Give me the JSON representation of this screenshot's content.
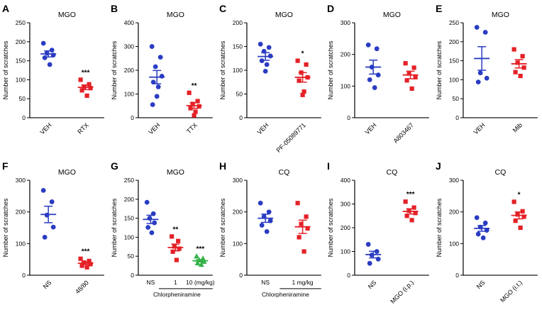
{
  "figure": {
    "background": "#ffffff",
    "colors": {
      "control_blue": "#2a3cc2",
      "treatment_red": "#e42127",
      "dose_green": "#36b24a",
      "axis_black": "#000000"
    }
  },
  "chart_data": [
    {
      "panel": "A",
      "type": "scatter",
      "title": "MGO",
      "ylabel": "Number of scratches",
      "ylim": [
        0,
        250
      ],
      "yticks": [
        0,
        50,
        100,
        150,
        200,
        250
      ],
      "x_rotation": 45,
      "groups": [
        {
          "label": "VEH",
          "marker": "circle",
          "color": "#2a3cc2",
          "values": [
            196,
            178,
            170,
            165,
            158,
            140
          ],
          "mean": 168,
          "sem": 8
        },
        {
          "label": "RTX",
          "marker": "square",
          "color": "#e42127",
          "values": [
            100,
            88,
            82,
            78,
            72,
            58
          ],
          "mean": 80,
          "sem": 6,
          "sig": "***"
        }
      ]
    },
    {
      "panel": "B",
      "type": "scatter",
      "title": "MGO",
      "ylabel": "Number of scratches",
      "ylim": [
        0,
        400
      ],
      "yticks": [
        0,
        100,
        200,
        300,
        400
      ],
      "x_rotation": 45,
      "groups": [
        {
          "label": "VEH",
          "marker": "circle",
          "color": "#2a3cc2",
          "values": [
            300,
            255,
            215,
            175,
            150,
            130,
            90,
            55
          ],
          "mean": 171,
          "sem": 28
        },
        {
          "label": "TTX",
          "marker": "square",
          "color": "#e42127",
          "values": [
            105,
            70,
            58,
            48,
            40,
            25,
            10
          ],
          "mean": 51,
          "sem": 12,
          "sig": "**"
        }
      ]
    },
    {
      "panel": "C",
      "type": "scatter",
      "title": "MGO",
      "ylabel": "Number of scratches",
      "ylim": [
        0,
        200
      ],
      "yticks": [
        0,
        50,
        100,
        150,
        200
      ],
      "x_rotation": 45,
      "groups": [
        {
          "label": "VEH",
          "marker": "circle",
          "color": "#2a3cc2",
          "values": [
            155,
            148,
            140,
            130,
            120,
            112,
            98
          ],
          "mean": 129,
          "sem": 8
        },
        {
          "label": "PF-05089771",
          "marker": "square",
          "color": "#e42127",
          "values": [
            120,
            112,
            95,
            85,
            78,
            55,
            48
          ],
          "mean": 85,
          "sem": 10,
          "sig": "*"
        }
      ]
    },
    {
      "panel": "D",
      "type": "scatter",
      "title": "MGO",
      "ylabel": "Number of scratches",
      "ylim": [
        0,
        300
      ],
      "yticks": [
        0,
        100,
        200,
        300
      ],
      "x_rotation": 45,
      "groups": [
        {
          "label": "VEH",
          "marker": "circle",
          "color": "#2a3cc2",
          "values": [
            230,
            218,
            160,
            135,
            120,
            95
          ],
          "mean": 160,
          "sem": 22
        },
        {
          "label": "A803467",
          "marker": "square",
          "color": "#e42127",
          "values": [
            172,
            158,
            140,
            128,
            118,
            92
          ],
          "mean": 135,
          "sem": 12
        }
      ]
    },
    {
      "panel": "E",
      "type": "scatter",
      "title": "MGO",
      "ylabel": "Number of scratches",
      "ylim": [
        0,
        250
      ],
      "yticks": [
        0,
        50,
        100,
        150,
        200,
        250
      ],
      "x_rotation": 45,
      "groups": [
        {
          "label": "VEH",
          "marker": "circle",
          "color": "#2a3cc2",
          "values": [
            238,
            225,
            118,
            104,
            94
          ],
          "mean": 156,
          "sem": 31
        },
        {
          "label": "Mib",
          "marker": "square",
          "color": "#e42127",
          "values": [
            180,
            162,
            145,
            132,
            120,
            110
          ],
          "mean": 142,
          "sem": 11
        }
      ]
    },
    {
      "panel": "F",
      "type": "scatter",
      "title": "MGO",
      "ylabel": "Number of scratches",
      "ylim": [
        0,
        300
      ],
      "yticks": [
        0,
        100,
        200,
        300
      ],
      "x_rotation": 45,
      "groups": [
        {
          "label": "NS",
          "marker": "circle",
          "color": "#2a3cc2",
          "values": [
            268,
            232,
            190,
            152,
            120
          ],
          "mean": 192,
          "sem": 26
        },
        {
          "label": "48/80",
          "marker": "square",
          "color": "#e42127",
          "values": [
            52,
            45,
            40,
            35,
            30,
            25
          ],
          "mean": 38,
          "sem": 4,
          "sig": "***"
        }
      ]
    },
    {
      "panel": "G",
      "type": "scatter",
      "title": "MGO",
      "ylabel": "Number of scratches",
      "ylim": [
        0,
        250
      ],
      "yticks": [
        0,
        50,
        100,
        150,
        200,
        250
      ],
      "x_rotation": 0,
      "xaxis_group_label": "Chlorpheniramine",
      "groups": [
        {
          "label": "NS",
          "marker": "circle",
          "color": "#2a3cc2",
          "values": [
            192,
            162,
            150,
            138,
            126,
            112
          ],
          "mean": 147,
          "sem": 11
        },
        {
          "label": "1",
          "marker": "square",
          "color": "#e42127",
          "values": [
            102,
            90,
            76,
            70,
            62,
            40
          ],
          "mean": 73,
          "sem": 9,
          "sig": "**"
        },
        {
          "label": "10 (mg/kg)",
          "marker": "triangle",
          "color": "#36b24a",
          "values": [
            50,
            44,
            40,
            36,
            32,
            28
          ],
          "mean": 38,
          "sem": 3,
          "sig": "***"
        }
      ]
    },
    {
      "panel": "H",
      "type": "scatter",
      "title": "CQ",
      "ylabel": "Number of scratches",
      "ylim": [
        0,
        300
      ],
      "yticks": [
        0,
        100,
        200,
        300
      ],
      "x_rotation": 0,
      "xaxis_group_label": "Chlorpheniramine",
      "groups": [
        {
          "label": "NS",
          "marker": "circle",
          "color": "#2a3cc2",
          "values": [
            228,
            200,
            185,
            172,
            158,
            138
          ],
          "mean": 180,
          "sem": 13
        },
        {
          "label": "1 mg/kg",
          "marker": "square",
          "color": "#e42127",
          "values": [
            228,
            185,
            162,
            148,
            120,
            75
          ],
          "mean": 153,
          "sem": 21
        }
      ]
    },
    {
      "panel": "I",
      "type": "scatter",
      "title": "CQ",
      "ylabel": "Number of scratches",
      "ylim": [
        0,
        400
      ],
      "yticks": [
        0,
        100,
        200,
        300,
        400
      ],
      "x_rotation": 45,
      "groups": [
        {
          "label": "NS",
          "marker": "circle",
          "color": "#2a3cc2",
          "values": [
            130,
            100,
            85,
            68,
            50
          ],
          "mean": 87,
          "sem": 14
        },
        {
          "label": "MGO (i.p.)",
          "marker": "square",
          "color": "#e42127",
          "values": [
            310,
            285,
            272,
            262,
            250,
            232
          ],
          "mean": 269,
          "sem": 11,
          "sig": "***"
        }
      ]
    },
    {
      "panel": "J",
      "type": "scatter",
      "title": "CQ",
      "ylabel": "Number of scratches",
      "ylim": [
        0,
        300
      ],
      "yticks": [
        0,
        100,
        200,
        300
      ],
      "x_rotation": 45,
      "groups": [
        {
          "label": "NS",
          "marker": "circle",
          "color": "#2a3cc2",
          "values": [
            182,
            165,
            152,
            142,
            130,
            118
          ],
          "mean": 148,
          "sem": 9
        },
        {
          "label": "MGO (i.t.)",
          "marker": "square",
          "color": "#e42127",
          "values": [
            232,
            202,
            192,
            185,
            172,
            150
          ],
          "mean": 189,
          "sem": 11,
          "sig": "*"
        }
      ]
    }
  ]
}
